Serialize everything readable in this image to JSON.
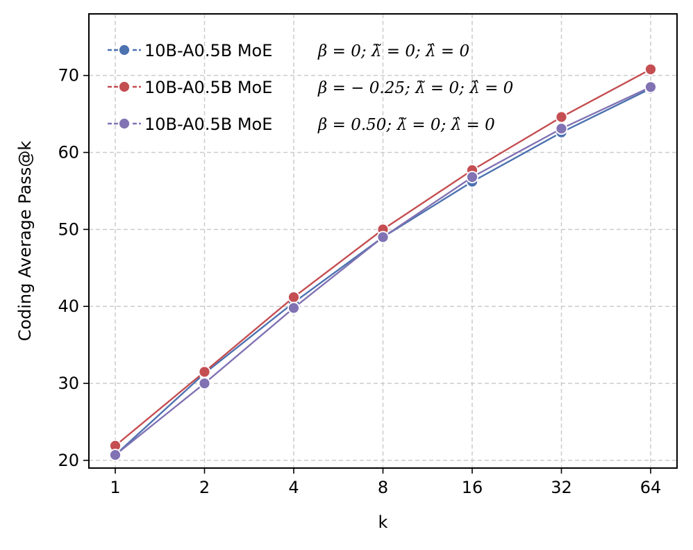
{
  "chart_data": {
    "type": "line",
    "xlabel": "k",
    "ylabel": "Coding Average Pass@k",
    "x_scale": "log2",
    "categories": [
      "1",
      "2",
      "4",
      "8",
      "16",
      "32",
      "64"
    ],
    "x": [
      1,
      2,
      4,
      8,
      16,
      32,
      64
    ],
    "yticks": [
      "20",
      "30",
      "40",
      "50",
      "60",
      "70"
    ],
    "ylim": [
      19,
      78
    ],
    "grid": true,
    "legend_position": "upper-left",
    "series": [
      {
        "name": "10B-A0.5B MoE",
        "legend_math": "β = 0;  λ̃ = 0;  λ̂ = 0",
        "color": "#4c72b0",
        "values": [
          20.7,
          31.3,
          40.5,
          49.0,
          56.2,
          62.6,
          68.3
        ]
      },
      {
        "name": "10B-A0.5B MoE",
        "legend_math": "β = − 0.25;  λ̃ = 0;  λ̂ = 0",
        "color": "#c44e52",
        "values": [
          21.9,
          31.5,
          41.2,
          50.0,
          57.7,
          64.6,
          70.8
        ]
      },
      {
        "name": "10B-A0.5B MoE",
        "legend_math": "β = 0.50;  λ̃ = 0;  λ̂ = 0",
        "color": "#8172b3",
        "values": [
          20.7,
          30.0,
          39.8,
          49.0,
          56.8,
          63.1,
          68.5
        ]
      }
    ]
  }
}
